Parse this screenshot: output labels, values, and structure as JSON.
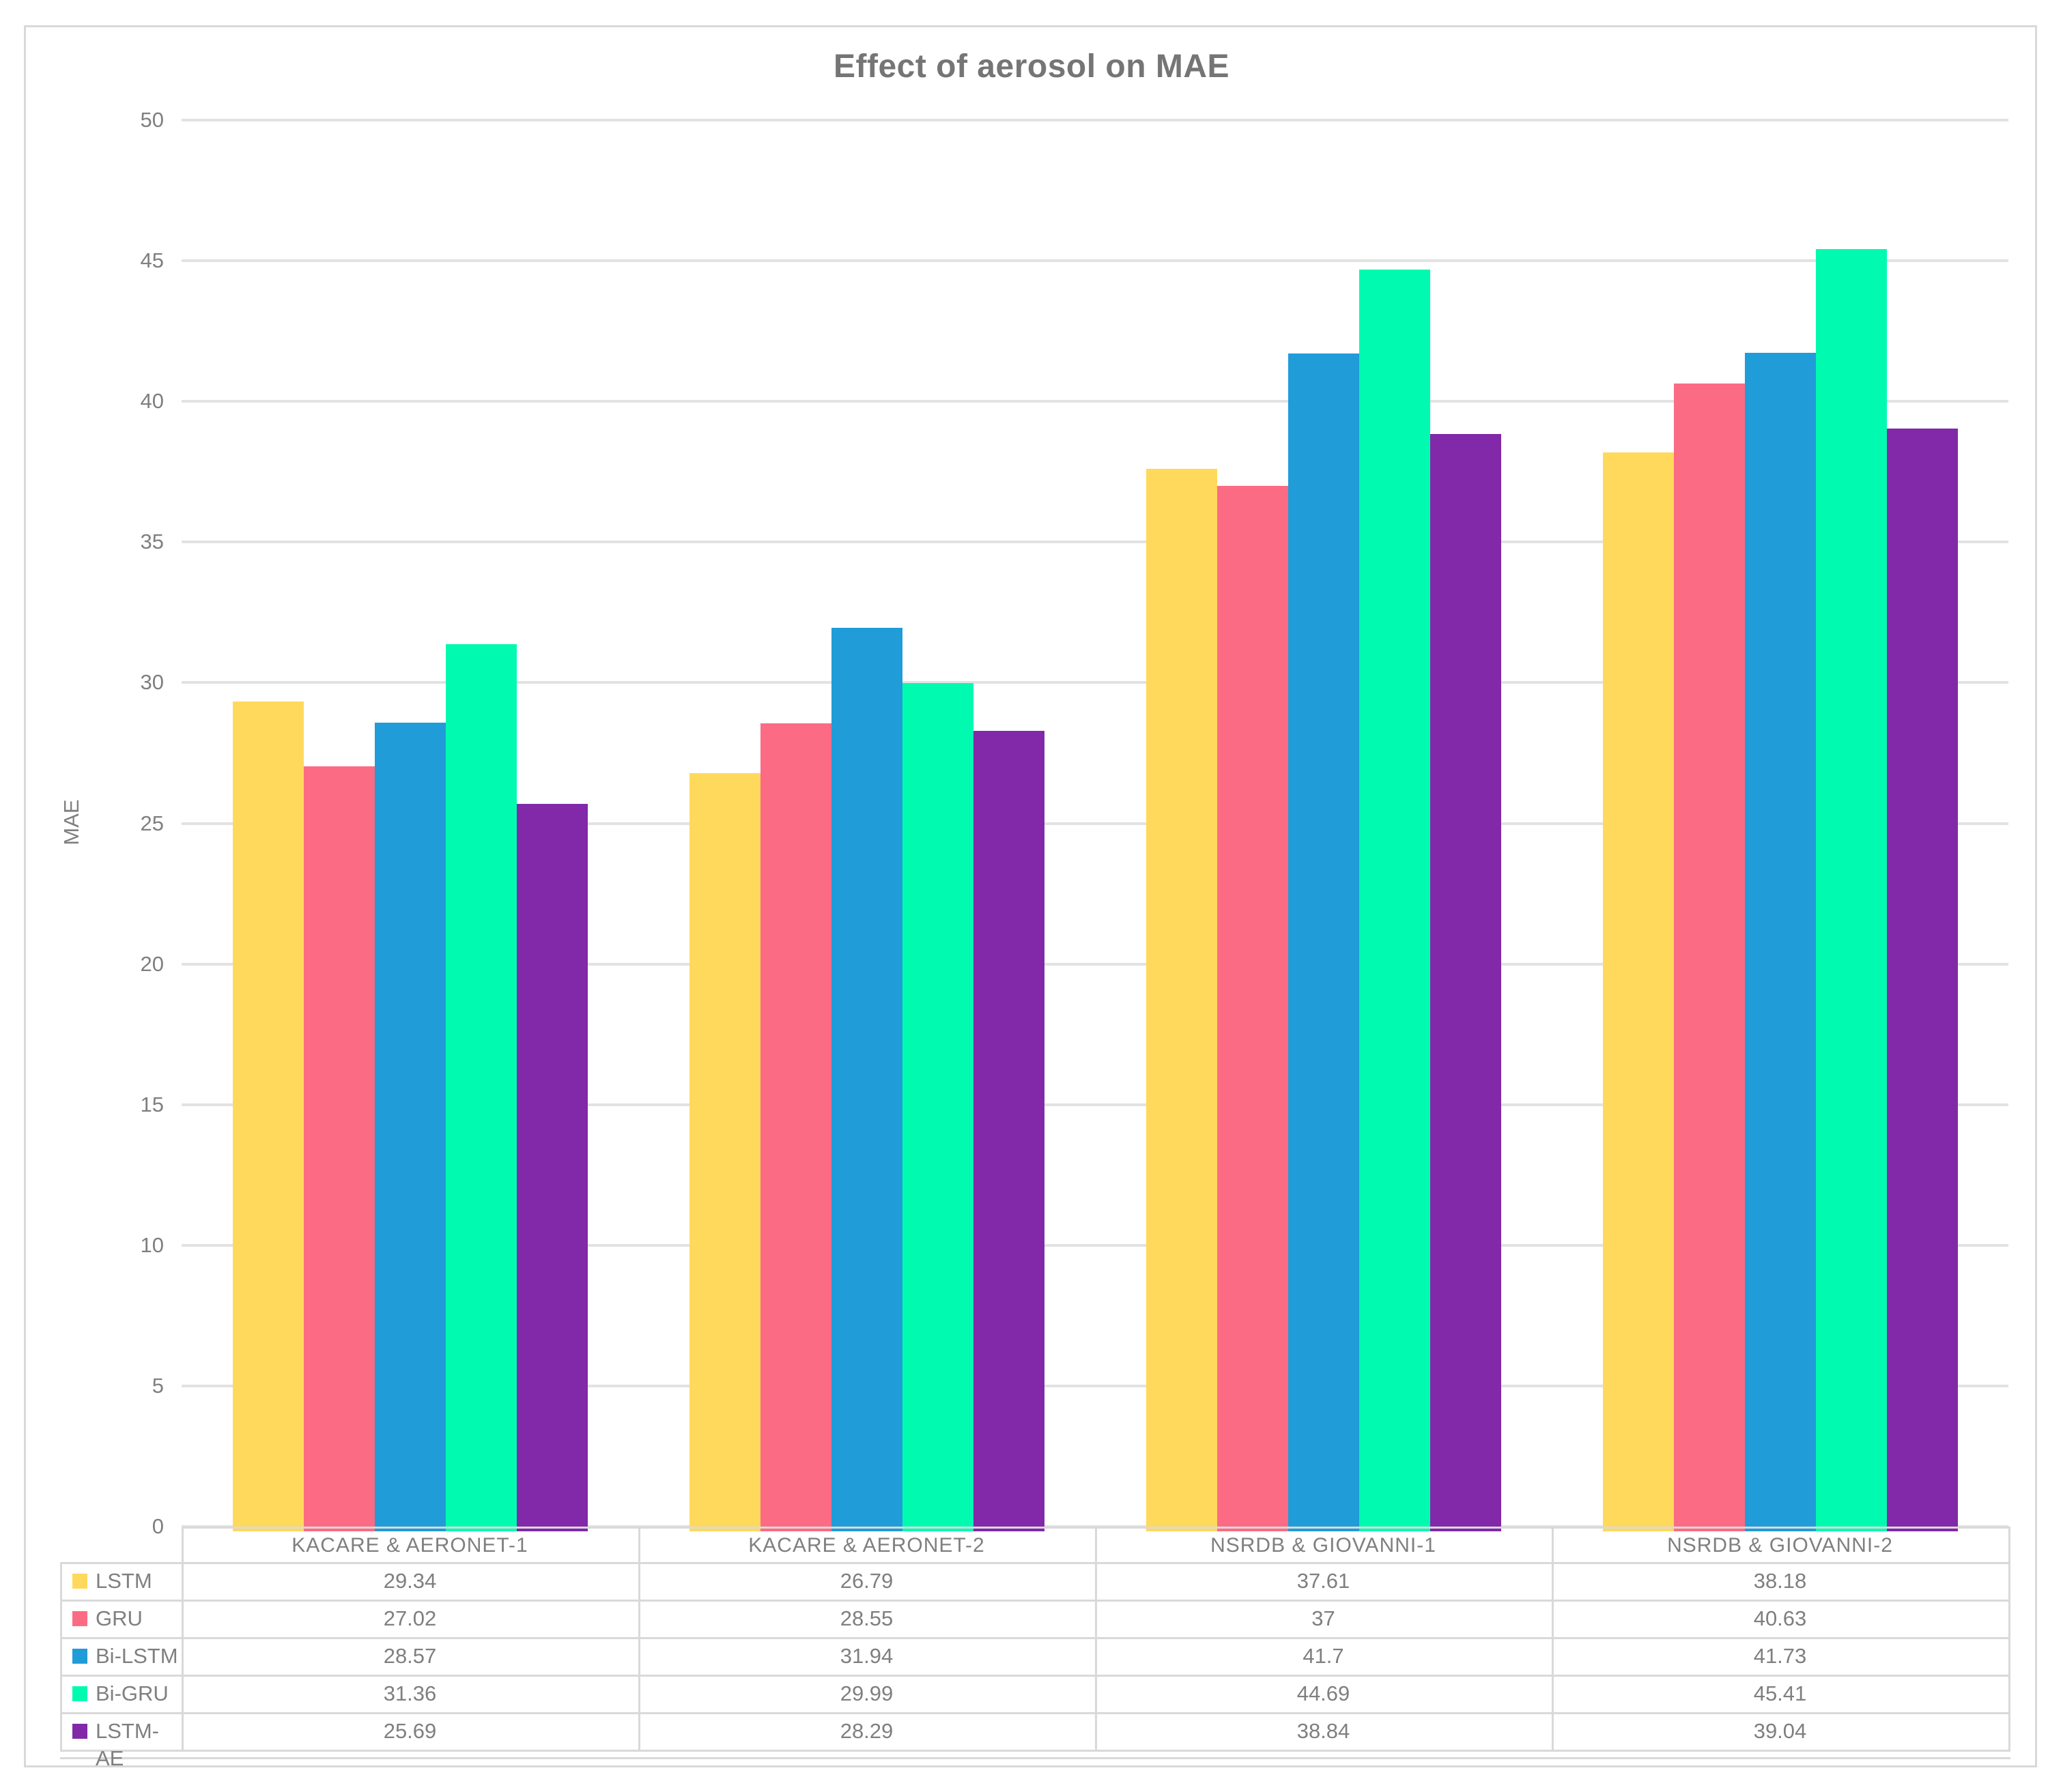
{
  "chart_data": {
    "type": "bar",
    "title": "Effect of aerosol on MAE",
    "ylabel": "MAE",
    "xlabel": "",
    "ylim": [
      0,
      50
    ],
    "ytick_step": 5,
    "grid": true,
    "legend_position": "left-of-data-table",
    "has_data_table": true,
    "categories": [
      "KACARE & AERONET-1",
      "KACARE & AERONET-2",
      "NSRDB & GIOVANNI-1",
      "NSRDB & GIOVANNI-2"
    ],
    "series": [
      {
        "name": "LSTM",
        "color": "#FFD95C",
        "values": [
          29.34,
          26.79,
          37.61,
          38.18
        ]
      },
      {
        "name": "GRU",
        "color": "#FC6B84",
        "values": [
          27.02,
          28.55,
          37,
          40.63
        ]
      },
      {
        "name": "Bi-LSTM",
        "color": "#209CD8",
        "values": [
          28.57,
          31.94,
          41.7,
          41.73
        ]
      },
      {
        "name": "Bi-GRU",
        "color": "#00FBB0",
        "values": [
          31.36,
          29.99,
          44.69,
          45.41
        ]
      },
      {
        "name": "LSTM-AE",
        "color": "#8129A8",
        "values": [
          25.69,
          28.29,
          38.84,
          39.04
        ]
      }
    ]
  },
  "appearance": {
    "grid_color": "#E2E2E2",
    "table_border_color": "#D9D9D9",
    "text_color": "#7F7F7F",
    "title_color": "#757575",
    "background": "#FFFFFF"
  }
}
